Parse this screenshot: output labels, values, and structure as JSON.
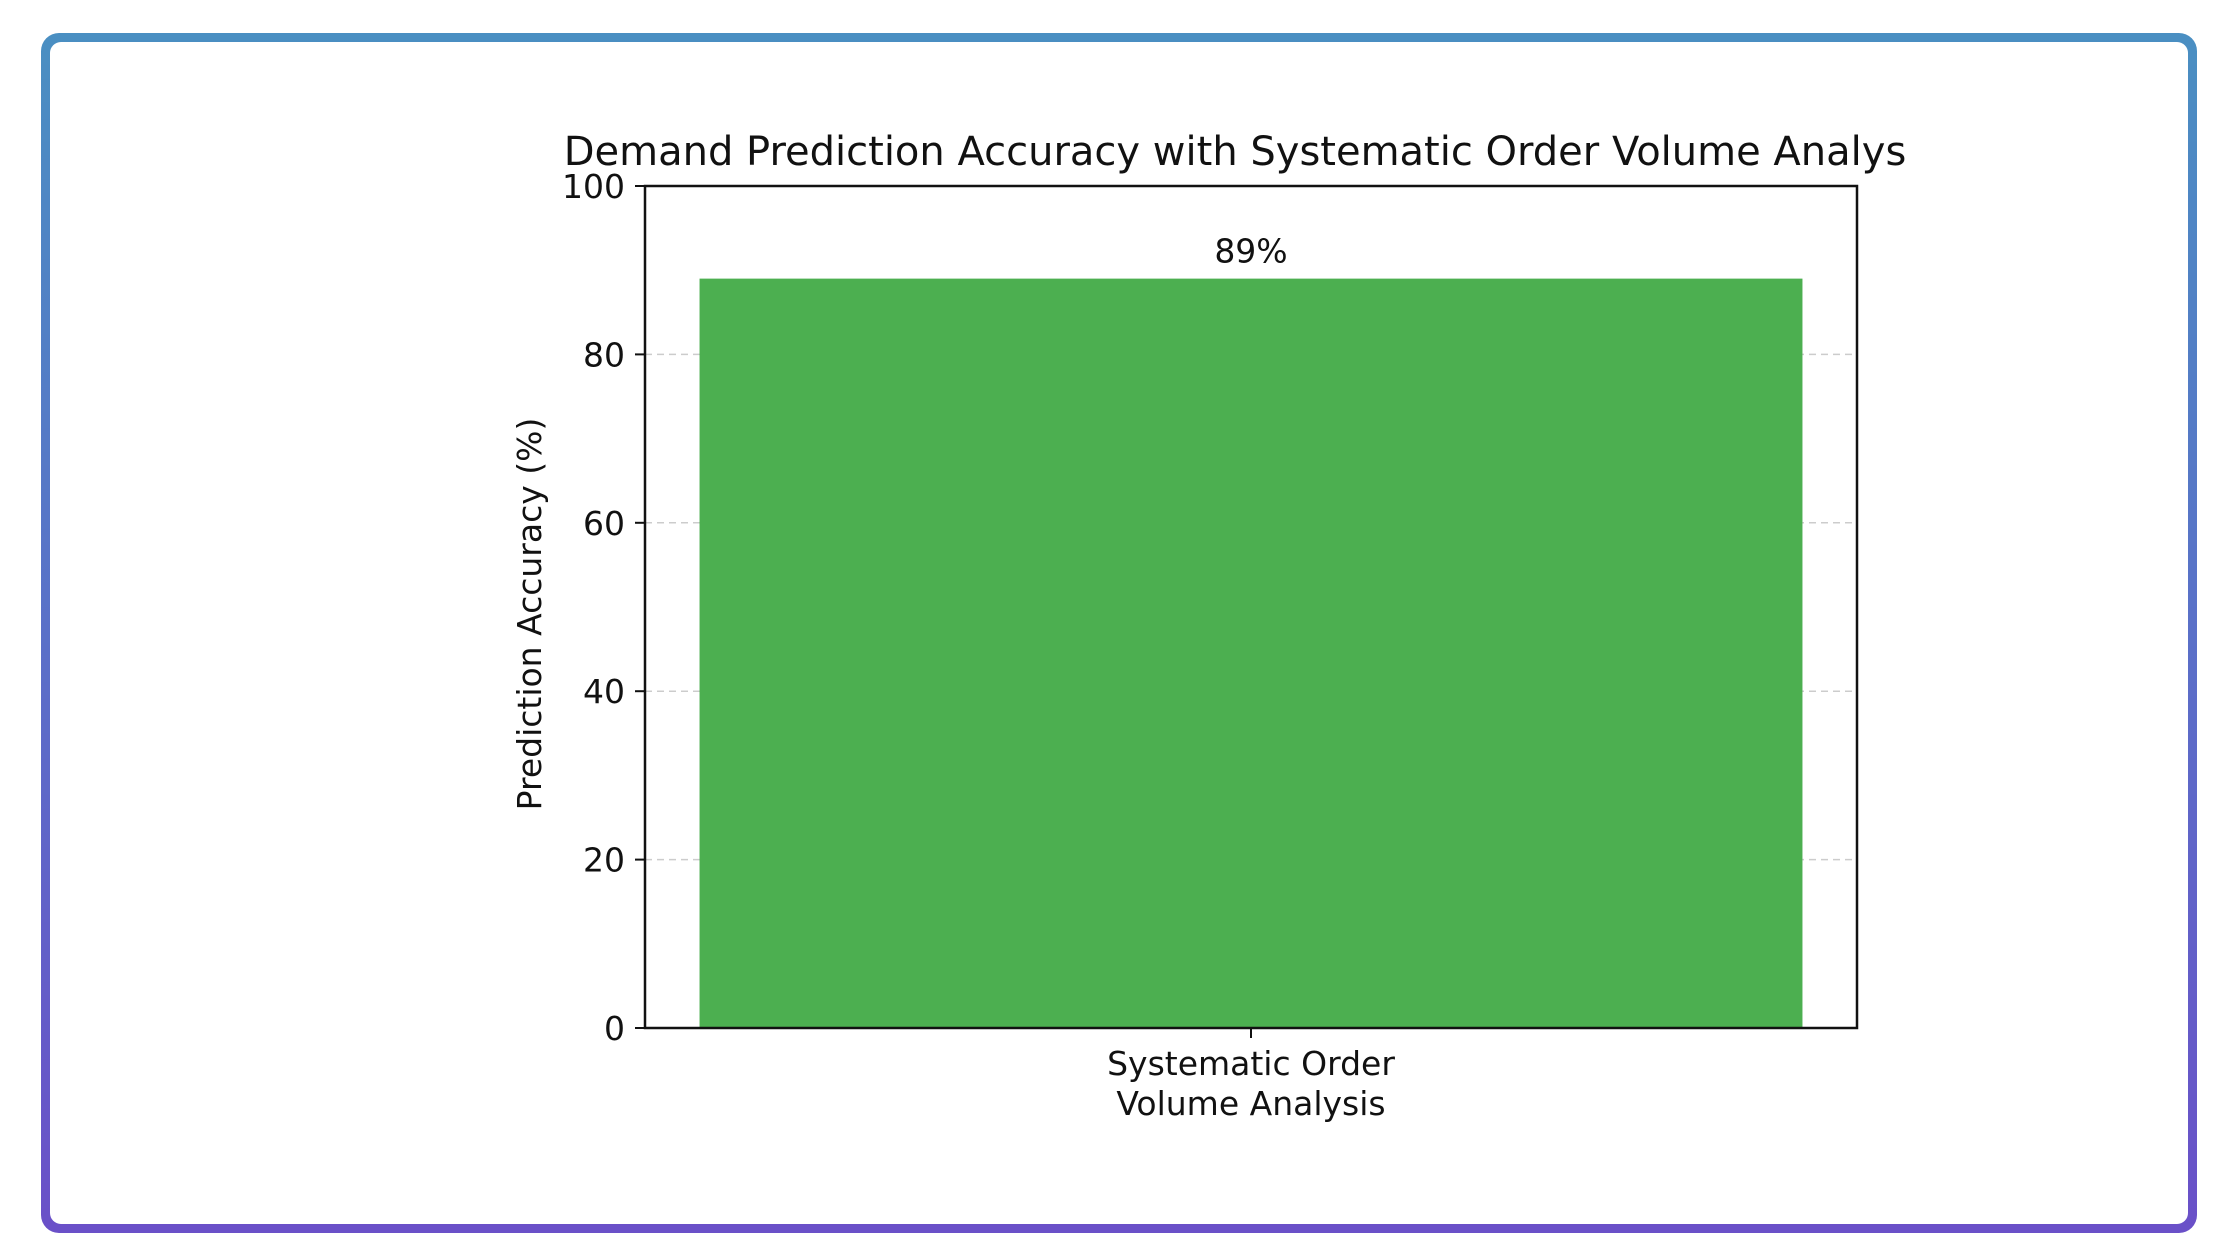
{
  "chart_data": {
    "type": "bar",
    "title": "Demand Prediction Accuracy with Systematic Order Volume Analys",
    "categories": [
      "Systematic Order\nVolume Analysis"
    ],
    "values": [
      89
    ],
    "value_labels": [
      "89%"
    ],
    "xlabel": "",
    "ylabel": "Prediction Accuracy (%)",
    "ylim": [
      0,
      100
    ],
    "yticks": [
      0,
      20,
      40,
      60,
      80,
      100
    ],
    "grid": "y-dashed",
    "bar_color": "#4caf50"
  },
  "colors": {
    "frame_top": "#4a8fc2",
    "frame_bottom": "#6a50c8",
    "grid": "#cccccc",
    "axis": "#111111"
  }
}
